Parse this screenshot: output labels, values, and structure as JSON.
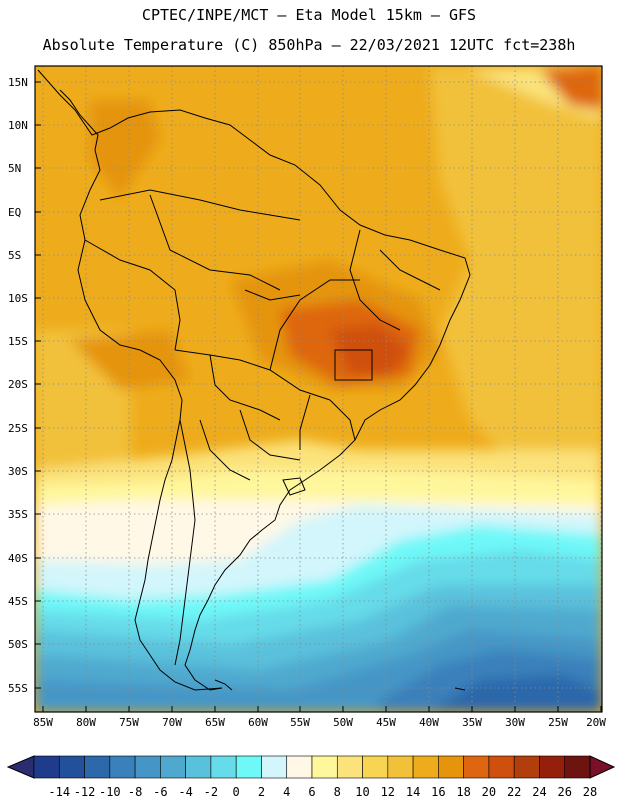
{
  "header": {
    "line1": "CPTEC/INPE/MCT –  Eta Model 15km – GFS",
    "line2": "Absolute Temperature (C) 850hPa – 22/03/2021 12UTC fct=238h"
  },
  "axes": {
    "lat_labels": [
      "15N",
      "10N",
      "5N",
      "EQ",
      "5S",
      "10S",
      "15S",
      "20S",
      "25S",
      "30S",
      "35S",
      "40S",
      "45S",
      "50S",
      "55S"
    ],
    "lon_labels": [
      "85W",
      "80W",
      "75W",
      "70W",
      "65W",
      "60W",
      "55W",
      "50W",
      "45W",
      "40W",
      "35W",
      "30W",
      "25W",
      "20W"
    ]
  },
  "colorbar": {
    "labels": [
      "-14",
      "-12",
      "-10",
      "-8",
      "-6",
      "-4",
      "-2",
      "0",
      "2",
      "4",
      "6",
      "8",
      "10",
      "12",
      "14",
      "16",
      "18",
      "20",
      "22",
      "24",
      "26",
      "28"
    ],
    "colors": [
      "#1f3c8c",
      "#23509a",
      "#2c68aa",
      "#3a80bb",
      "#4596c6",
      "#4fa9cf",
      "#5ac1dc",
      "#66dbe9",
      "#6ef8f8",
      "#d2f6fb",
      "#fff8e6",
      "#fff79c",
      "#fbe27a",
      "#f7d452",
      "#f2c13a",
      "#eeac1c",
      "#e5940b",
      "#de6610",
      "#cf4f0f",
      "#b23d0d",
      "#94200b",
      "#6d1410"
    ],
    "left_arrow": "#2a2e6e",
    "right_arrow": "#7a0f2a"
  }
}
